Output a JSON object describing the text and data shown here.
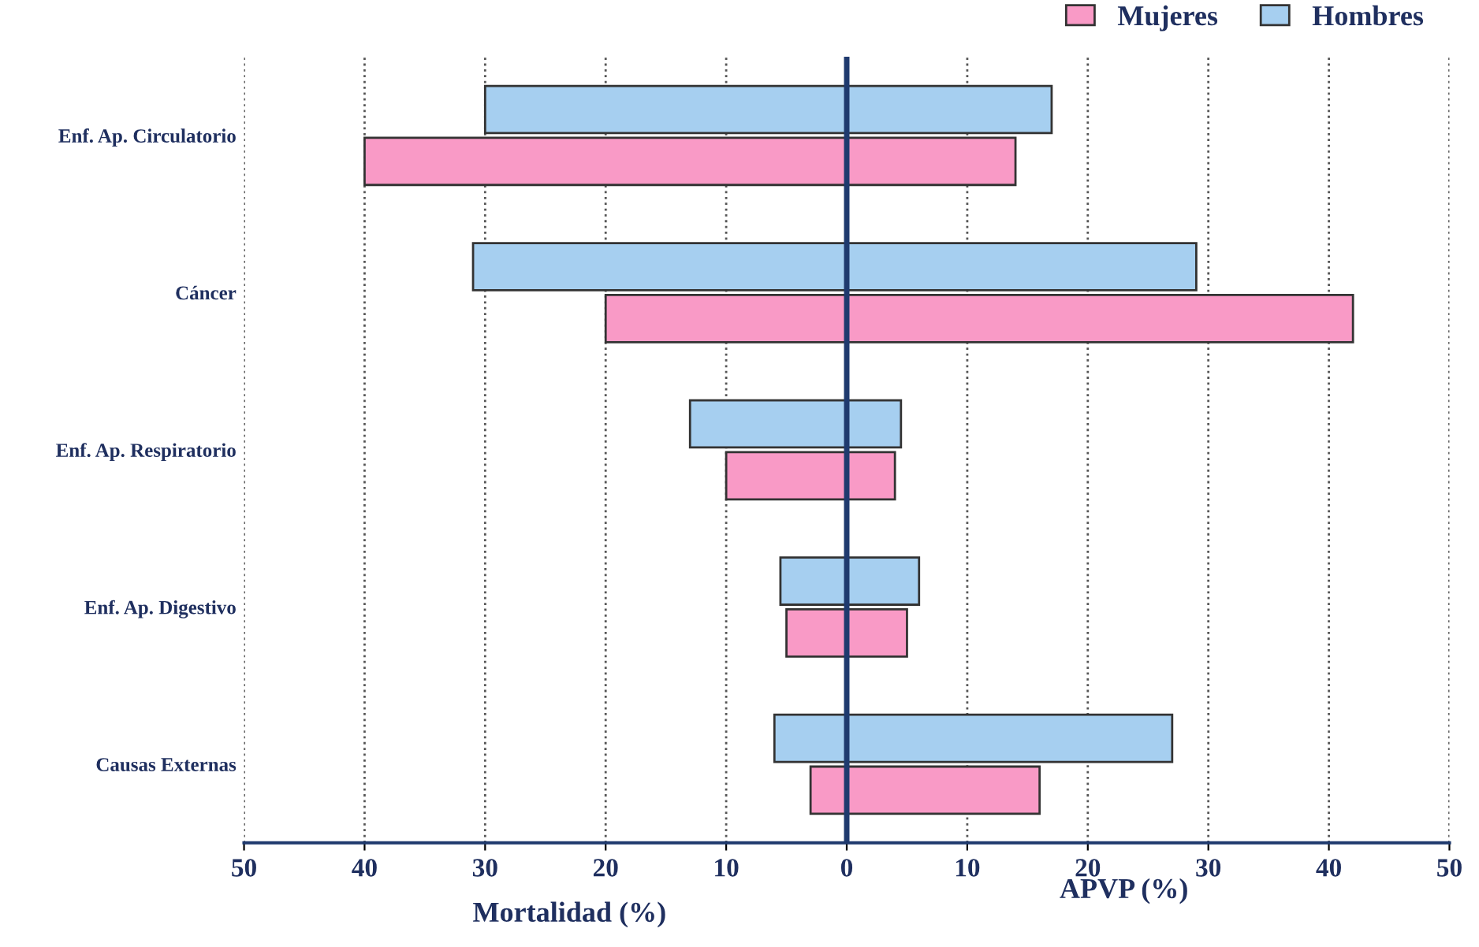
{
  "chart_data": {
    "type": "bar",
    "orientation": "horizontal",
    "categories": [
      "Enf. Ap. Circulatorio",
      "Cáncer",
      "Enf. Ap. Respiratorio",
      "Enf. Ap. Digestivo",
      "Causas Externas"
    ],
    "series": [
      {
        "name": "Mujeres",
        "color": "#f99ac6",
        "base": [
          -40,
          -20,
          -10,
          -5,
          -3
        ],
        "values": [
          54,
          62,
          14,
          10,
          19
        ]
      },
      {
        "name": "Hombres",
        "color": "#a6cff0",
        "base": [
          -30,
          -31,
          -13,
          -5.5,
          -6
        ],
        "values": [
          47,
          60,
          17.5,
          11.5,
          33
        ]
      }
    ],
    "xlim": [
      -50,
      50
    ],
    "xticks": [
      {
        "value": -50,
        "label": "50"
      },
      {
        "value": -40,
        "label": "40"
      },
      {
        "value": -30,
        "label": "30"
      },
      {
        "value": -20,
        "label": "20"
      },
      {
        "value": -10,
        "label": "10"
      },
      0,
      10,
      20,
      30,
      40,
      50
    ],
    "xlabel": "Mortalidad (%)",
    "annotations": [
      "APVP (%)"
    ],
    "ref_lines": [
      {
        "axis": "x",
        "value": 0,
        "color": "#1f3a6e"
      }
    ],
    "grid": "x",
    "legend": "top right"
  }
}
